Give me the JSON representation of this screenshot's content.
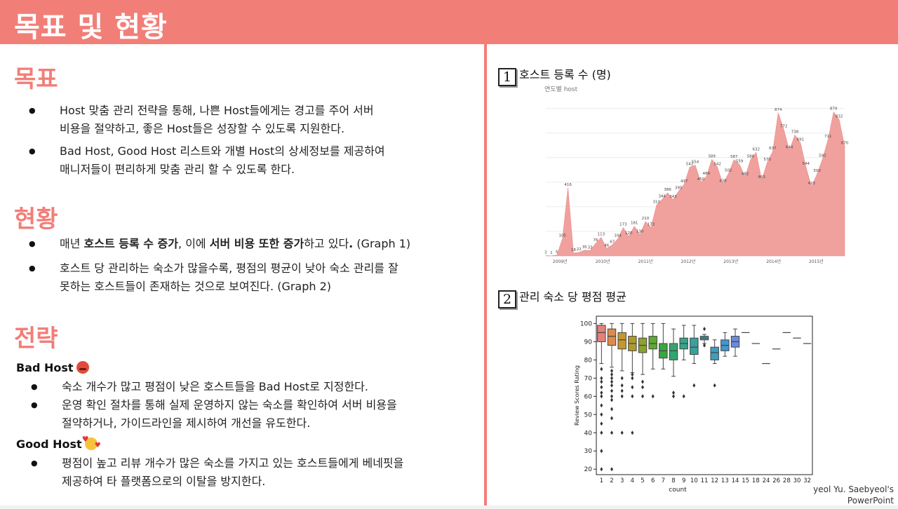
{
  "header": {
    "title": "목표 및 현황"
  },
  "goal": {
    "title": "목표",
    "items": [
      [
        "Host 맞춤 관리 전략을 통해, 나쁜 Host들에게는 경고를 주어 서버",
        "비용을 절약하고, 좋은 Host들은 성장할 수 있도록 지원한다."
      ],
      [
        "Bad Host, Good Host 리스트와 개별 Host의 상세정보를 제공하여",
        "매니저들이 편리하게 맞춤 관리 할 수 있도록 한다."
      ]
    ]
  },
  "status": {
    "title": "현황",
    "item1": {
      "pre": "매년 ",
      "b1": "호스트 등록 수 증가",
      "mid": ", 이에 ",
      "b2": "서버 비용 또한 증가",
      "post": "하고 있다",
      "dot": ".",
      "ref": " (Graph 1)"
    },
    "item2": [
      "호스트 당 관리하는 숙소가 많을수록, 평점의 평균이 낮아 숙소 관리를 잘",
      "못하는 호스트들이 존재하는 것으로 보여진다. (Graph 2)"
    ]
  },
  "strategy": {
    "title": "전략",
    "bad": {
      "title": "Bad Host",
      "emoji": "angry-face-icon",
      "items": [
        [
          "숙소 개수가 많고 평점이 낮은 호스트들을 Bad Host로 지정한다."
        ],
        [
          "운영 확인 절차를 통해 실제 운영하지 않는 숙소를 확인하여 서버 비용을",
          "절약하거나, 가이드라인을 제시하여 개선을 유도한다."
        ]
      ]
    },
    "good": {
      "title": "Good Host",
      "emoji": "smiling-face-with-hearts-icon",
      "items": [
        [
          "평점이 높고 리뷰 개수가 많은 숙소를 가지고 있는 호스트들에게 베네핏을",
          "제공하여 타 플랫폼으로의 이탈을 방지한다."
        ]
      ]
    }
  },
  "graph1": {
    "number": "1",
    "title": "호스트 등록 수 (명)"
  },
  "graph2": {
    "number": "2",
    "title": "관리 숙소 당 평점 평균"
  },
  "credit": {
    "line1": "yeol Yu. Saebyeol's",
    "line2": "PowerPoint"
  },
  "chart_data": [
    {
      "type": "area",
      "title": "연도별 host",
      "color": "#f0a09d",
      "x_tick_labels": [
        "2009년",
        "2010년",
        "2011년",
        "2012년",
        "2013년",
        "2014년",
        "2015년"
      ],
      "x_tick_index": [
        4,
        16,
        28,
        40,
        52,
        64,
        76
      ],
      "values": [
        2,
        1,
        5,
        105,
        416,
        18,
        22,
        35,
        33,
        76,
        113,
        46,
        67,
        104,
        173,
        120,
        181,
        130,
        210,
        173,
        310,
        344,
        386,
        343,
        395,
        437,
        542,
        554,
        450,
        484,
        589,
        542,
        439,
        502,
        587,
        559,
        482,
        588,
        632,
        463,
        570,
        637,
        874,
        772,
        644,
        738,
        691,
        544,
        423,
        500,
        592,
        711,
        879,
        832,
        670
      ],
      "ylim": [
        0,
        950
      ]
    },
    {
      "type": "box",
      "xlabel": "count",
      "ylabel": "Review Scores Rating",
      "yticks": [
        20,
        30,
        40,
        50,
        60,
        70,
        80,
        90,
        100
      ],
      "ylim": [
        17,
        104
      ],
      "categories": [
        "1",
        "2",
        "3",
        "4",
        "5",
        "6",
        "7",
        "8",
        "9",
        "10",
        "11",
        "12",
        "13",
        "14",
        "15",
        "18",
        "24",
        "26",
        "28",
        "30",
        "32"
      ],
      "colors": [
        "#e8807a",
        "#dd8b4c",
        "#c8962e",
        "#ad9a2c",
        "#8ba130",
        "#5ea834",
        "#3aa643",
        "#35a56f",
        "#37a38a",
        "#38a19c",
        "#3ba0ac",
        "#3d9ebd",
        "#4596cf",
        "#6c8bd9"
      ],
      "boxes": [
        {
          "q1": 90,
          "med": 95,
          "q3": 99,
          "wlo": 78,
          "whi": 100,
          "outliers": [
            20,
            30,
            40,
            45,
            50,
            55,
            60,
            62,
            65,
            68,
            70,
            75
          ]
        },
        {
          "q1": 88,
          "med": 93,
          "q3": 97,
          "wlo": 76,
          "whi": 100,
          "outliers": [
            20,
            40,
            48,
            53,
            58,
            60,
            63,
            66,
            68,
            70,
            72,
            74
          ]
        },
        {
          "q1": 86,
          "med": 91,
          "q3": 95,
          "wlo": 74,
          "whi": 100,
          "outliers": [
            40,
            60,
            63,
            66,
            70
          ]
        },
        {
          "q1": 85,
          "med": 89,
          "q3": 93,
          "wlo": 73,
          "whi": 100,
          "outliers": [
            40,
            60,
            65,
            70,
            72
          ]
        },
        {
          "q1": 84,
          "med": 88,
          "q3": 92,
          "wlo": 72,
          "whi": 100,
          "outliers": [
            60,
            65,
            68
          ]
        },
        {
          "q1": 86,
          "med": 89,
          "q3": 93,
          "wlo": 75,
          "whi": 100,
          "outliers": [
            60
          ]
        },
        {
          "q1": 81,
          "med": 85,
          "q3": 89,
          "wlo": 75,
          "whi": 100,
          "outliers": []
        },
        {
          "q1": 80,
          "med": 85,
          "q3": 89,
          "wlo": 71,
          "whi": 97,
          "outliers": [
            60,
            62
          ]
        },
        {
          "q1": 86,
          "med": 89,
          "q3": 92,
          "wlo": 80,
          "whi": 99,
          "outliers": [
            60
          ]
        },
        {
          "q1": 83,
          "med": 87,
          "q3": 92,
          "wlo": 78,
          "whi": 99,
          "outliers": [
            66
          ]
        },
        {
          "q1": 91,
          "med": 92,
          "q3": 93,
          "wlo": 89,
          "whi": 94,
          "outliers": [
            88,
            97
          ]
        },
        {
          "q1": 80,
          "med": 84,
          "q3": 87,
          "wlo": 78,
          "whi": 91,
          "outliers": [
            66
          ]
        },
        {
          "q1": 85,
          "med": 88,
          "q3": 91,
          "wlo": 82,
          "whi": 95,
          "outliers": []
        },
        {
          "q1": 87,
          "med": 90,
          "q3": 93,
          "wlo": 82,
          "whi": 97,
          "outliers": []
        },
        {
          "med": 95
        },
        {
          "med": 89
        },
        {
          "med": 78
        },
        {
          "med": 86
        },
        {
          "med": 95
        },
        {
          "med": 92
        },
        {
          "med": 89
        }
      ]
    }
  ]
}
